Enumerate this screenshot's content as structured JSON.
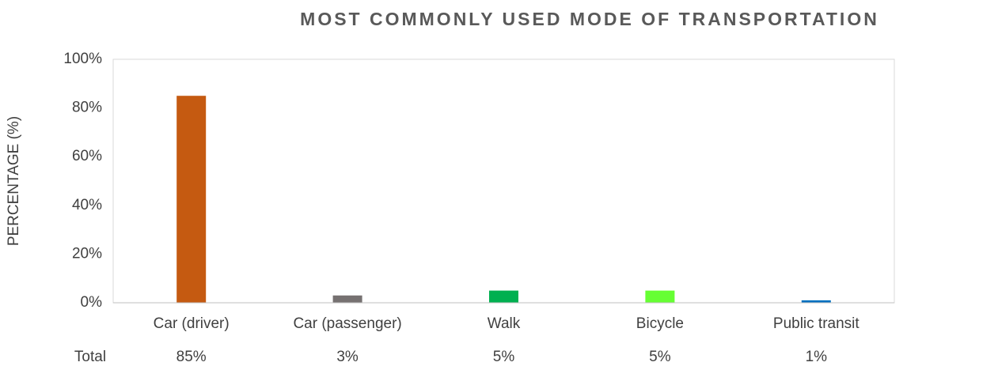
{
  "chart_data": {
    "type": "bar",
    "title": "MOST COMMONLY USED MODE OF TRANSPORTATION",
    "y_label": "PERCENTAGE (%)",
    "categories": [
      "Car (driver)",
      "Car (passenger)",
      "Walk",
      "Bicycle",
      "Public transit"
    ],
    "values": [
      85,
      3,
      5,
      5,
      1
    ],
    "value_labels": [
      "85%",
      "3%",
      "5%",
      "5%",
      "1%"
    ],
    "table_row_label": "Total",
    "colors": [
      "#c55a11",
      "#767171",
      "#00b050",
      "#66ff33",
      "#0070c0"
    ],
    "ylim": [
      0,
      100
    ],
    "yticks": [
      {
        "value": 0,
        "label": "0%"
      },
      {
        "value": 20,
        "label": "20%"
      },
      {
        "value": 40,
        "label": "40%"
      },
      {
        "value": 60,
        "label": "60%"
      },
      {
        "value": 80,
        "label": "80%"
      },
      {
        "value": 100,
        "label": "100%"
      }
    ],
    "grid": false
  }
}
